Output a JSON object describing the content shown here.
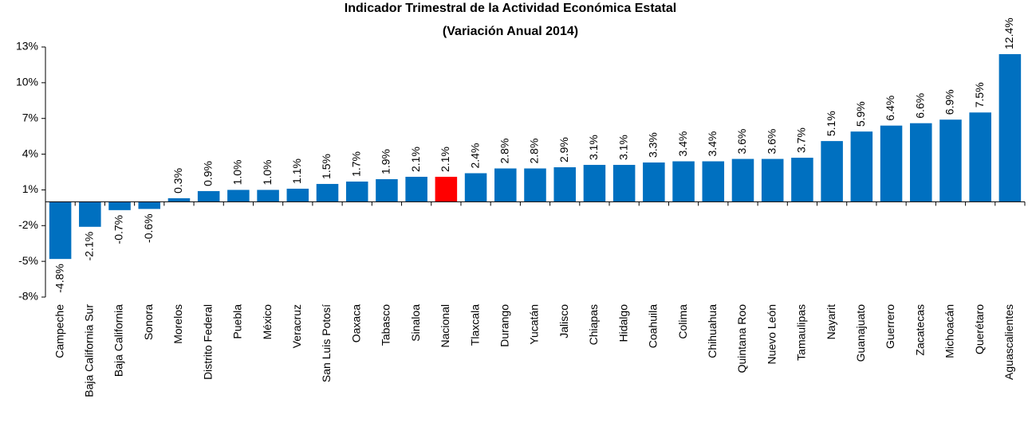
{
  "chart_data": {
    "type": "bar",
    "title": "Indicador Trimestral de la Actividad Económica Estatal",
    "subtitle": "(Variación Anual 2014)",
    "categories": [
      "Campeche",
      "Baja California Sur",
      "Baja California",
      "Sonora",
      "Morelos",
      "Distrito Federal",
      "Puebla",
      "México",
      "Veracruz",
      "San Luis Potosí",
      "Oaxaca",
      "Tabasco",
      "Sinaloa",
      "Nacional",
      "Tlaxcala",
      "Durango",
      "Yucatán",
      "Jalisco",
      "Chiapas",
      "Hidalgo",
      "Coahuila",
      "Colima",
      "Chihuahua",
      "Quintana Roo",
      "Nuevo León",
      "Tamaulipas",
      "Nayarit",
      "Guanajuato",
      "Guerrero",
      "Zacatecas",
      "Michoacán",
      "Querétaro",
      "Aguascalientes"
    ],
    "values": [
      -4.8,
      -2.1,
      -0.7,
      -0.6,
      0.3,
      0.9,
      1.0,
      1.0,
      1.1,
      1.5,
      1.7,
      1.9,
      2.1,
      2.1,
      2.4,
      2.8,
      2.8,
      2.9,
      3.1,
      3.1,
      3.3,
      3.4,
      3.4,
      3.6,
      3.6,
      3.7,
      5.1,
      5.9,
      6.4,
      6.6,
      6.9,
      7.5,
      12.4
    ],
    "value_labels": [
      "-4.8%",
      "-2.1%",
      "-0.7%",
      "-0.6%",
      "0.3%",
      "0.9%",
      "1.0%",
      "1.0%",
      "1.1%",
      "1.5%",
      "1.7%",
      "1.9%",
      "2.1%",
      "2.1%",
      "2.4%",
      "2.8%",
      "2.8%",
      "2.9%",
      "3.1%",
      "3.1%",
      "3.3%",
      "3.4%",
      "3.4%",
      "3.6%",
      "3.6%",
      "3.7%",
      "5.1%",
      "5.9%",
      "6.4%",
      "6.6%",
      "6.9%",
      "7.5%",
      "12.4%"
    ],
    "colors": [
      "#0070c0",
      "#0070c0",
      "#0070c0",
      "#0070c0",
      "#0070c0",
      "#0070c0",
      "#0070c0",
      "#0070c0",
      "#0070c0",
      "#0070c0",
      "#0070c0",
      "#0070c0",
      "#0070c0",
      "#ff0000",
      "#0070c0",
      "#0070c0",
      "#0070c0",
      "#0070c0",
      "#0070c0",
      "#0070c0",
      "#0070c0",
      "#0070c0",
      "#0070c0",
      "#0070c0",
      "#0070c0",
      "#0070c0",
      "#0070c0",
      "#0070c0",
      "#0070c0",
      "#0070c0",
      "#0070c0",
      "#0070c0",
      "#0070c0"
    ],
    "ylim": [
      -8,
      13
    ],
    "yticks": [
      {
        "value": 13,
        "label": "13%"
      },
      {
        "value": 10,
        "label": "10%"
      },
      {
        "value": 7,
        "label": "7%"
      },
      {
        "value": 4,
        "label": "4%"
      },
      {
        "value": 1,
        "label": "1%"
      },
      {
        "value": -2,
        "label": "-2%"
      },
      {
        "value": -5,
        "label": "-5%"
      },
      {
        "value": -8,
        "label": "-8%"
      }
    ],
    "grid": false
  }
}
